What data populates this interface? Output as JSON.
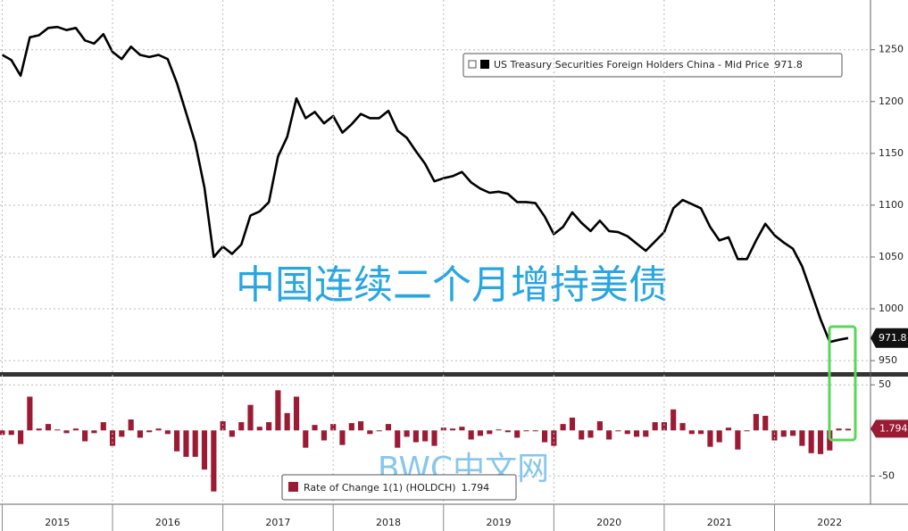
{
  "chart_data": [
    {
      "type": "line",
      "annotation": "中国连续二个月增持美债",
      "watermark": "BWC中文网",
      "xlim": [
        2014.98,
        2022.87
      ],
      "ylim": [
        938,
        1298
      ],
      "yticks": [
        950,
        1000,
        1050,
        1100,
        1150,
        1200,
        1250
      ],
      "grid": true,
      "legend": "top-right",
      "x": [
        2015,
        2015.083,
        2015.167,
        2015.25,
        2015.333,
        2015.417,
        2015.5,
        2015.583,
        2015.667,
        2015.75,
        2015.833,
        2015.917,
        2016,
        2016.083,
        2016.167,
        2016.25,
        2016.333,
        2016.417,
        2016.5,
        2016.583,
        2016.667,
        2016.75,
        2016.833,
        2016.917,
        2017,
        2017.083,
        2017.167,
        2017.25,
        2017.333,
        2017.417,
        2017.5,
        2017.583,
        2017.667,
        2017.75,
        2017.833,
        2017.917,
        2018,
        2018.083,
        2018.167,
        2018.25,
        2018.333,
        2018.417,
        2018.5,
        2018.583,
        2018.667,
        2018.75,
        2018.833,
        2018.917,
        2019,
        2019.083,
        2019.167,
        2019.25,
        2019.333,
        2019.417,
        2019.5,
        2019.583,
        2019.667,
        2019.75,
        2019.833,
        2019.917,
        2020,
        2020.083,
        2020.167,
        2020.25,
        2020.333,
        2020.417,
        2020.5,
        2020.583,
        2020.667,
        2020.75,
        2020.833,
        2020.917,
        2021,
        2021.083,
        2021.167,
        2021.25,
        2021.333,
        2021.417,
        2021.5,
        2021.583,
        2021.667,
        2021.75,
        2021.833,
        2021.917,
        2022,
        2022.083,
        2022.167,
        2022.25,
        2022.333,
        2022.417,
        2022.5,
        2022.583,
        2022.667
      ],
      "series": [
        {
          "name": "US Treasury Securities Foreign Holders China - Mid Price",
          "color": "#000000",
          "values": [
            1245,
            1240,
            1225,
            1262,
            1264,
            1271,
            1272,
            1269,
            1271,
            1259,
            1256,
            1265,
            1248,
            1241,
            1253,
            1245,
            1243,
            1245,
            1241,
            1218,
            1189,
            1160,
            1117,
            1050,
            1060,
            1053,
            1062,
            1090,
            1094,
            1103,
            1147,
            1166,
            1203,
            1184,
            1190,
            1179,
            1186,
            1170,
            1178,
            1188,
            1184,
            1184,
            1191,
            1172,
            1165,
            1152,
            1140,
            1123,
            1126,
            1128,
            1132,
            1122,
            1116,
            1112,
            1113,
            1111,
            1103,
            1103,
            1102,
            1089,
            1072,
            1079,
            1093,
            1083,
            1075,
            1085,
            1075,
            1074,
            1070,
            1063,
            1056,
            1065,
            1074,
            1097,
            1105,
            1101,
            1097,
            1079,
            1066,
            1069,
            1048,
            1048,
            1066,
            1082,
            1071,
            1064,
            1058,
            1041,
            1016,
            990,
            968,
            970,
            971.8
          ]
        }
      ]
    },
    {
      "type": "bar",
      "xlim": [
        2014.98,
        2022.87
      ],
      "ylim": [
        -81,
        59
      ],
      "yticks": [
        -50,
        50
      ],
      "xticks": [
        2015,
        2016,
        2017,
        2018,
        2019,
        2020,
        2021,
        2022
      ],
      "grid": true,
      "legend": "bottom-left",
      "x": [
        2015,
        2015.083,
        2015.167,
        2015.25,
        2015.333,
        2015.417,
        2015.5,
        2015.583,
        2015.667,
        2015.75,
        2015.833,
        2015.917,
        2016,
        2016.083,
        2016.167,
        2016.25,
        2016.333,
        2016.417,
        2016.5,
        2016.583,
        2016.667,
        2016.75,
        2016.833,
        2016.917,
        2017,
        2017.083,
        2017.167,
        2017.25,
        2017.333,
        2017.417,
        2017.5,
        2017.583,
        2017.667,
        2017.75,
        2017.833,
        2017.917,
        2018,
        2018.083,
        2018.167,
        2018.25,
        2018.333,
        2018.417,
        2018.5,
        2018.583,
        2018.667,
        2018.75,
        2018.833,
        2018.917,
        2019,
        2019.083,
        2019.167,
        2019.25,
        2019.333,
        2019.417,
        2019.5,
        2019.583,
        2019.667,
        2019.75,
        2019.833,
        2019.917,
        2020,
        2020.083,
        2020.167,
        2020.25,
        2020.333,
        2020.417,
        2020.5,
        2020.583,
        2020.667,
        2020.75,
        2020.833,
        2020.917,
        2021,
        2021.083,
        2021.167,
        2021.25,
        2021.333,
        2021.417,
        2021.5,
        2021.583,
        2021.667,
        2021.75,
        2021.833,
        2021.917,
        2022,
        2022.083,
        2022.167,
        2022.25,
        2022.333,
        2022.417,
        2022.5,
        2022.583,
        2022.667
      ],
      "series": [
        {
          "name": "Rate of Change 1(1) (HOLDCH)",
          "color": "#9b1b34",
          "values": [
            -5,
            -5,
            -15,
            37,
            2,
            7,
            1,
            -3,
            2,
            -12,
            -3,
            9,
            -17,
            -7,
            12,
            -8,
            -2,
            2,
            -4,
            -23,
            -29,
            -29,
            -43,
            -67,
            10,
            -7,
            9,
            28,
            4,
            9,
            44,
            19,
            37,
            -19,
            6,
            -11,
            7,
            -16,
            8,
            10,
            -4,
            0,
            7,
            -19,
            -7,
            -13,
            -12,
            -17,
            3,
            2,
            4,
            -10,
            -6,
            -4,
            1,
            -2,
            -8,
            0,
            -1,
            -13,
            -17,
            7,
            14,
            -10,
            -8,
            10,
            -10,
            -1,
            -4,
            -7,
            -7,
            9,
            9,
            23,
            8,
            -4,
            -4,
            -18,
            -13,
            3,
            -21,
            0,
            18,
            16,
            -11,
            -7,
            -6,
            -17,
            -25,
            -26,
            -22,
            2,
            1.794
          ]
        }
      ]
    }
  ]
}
